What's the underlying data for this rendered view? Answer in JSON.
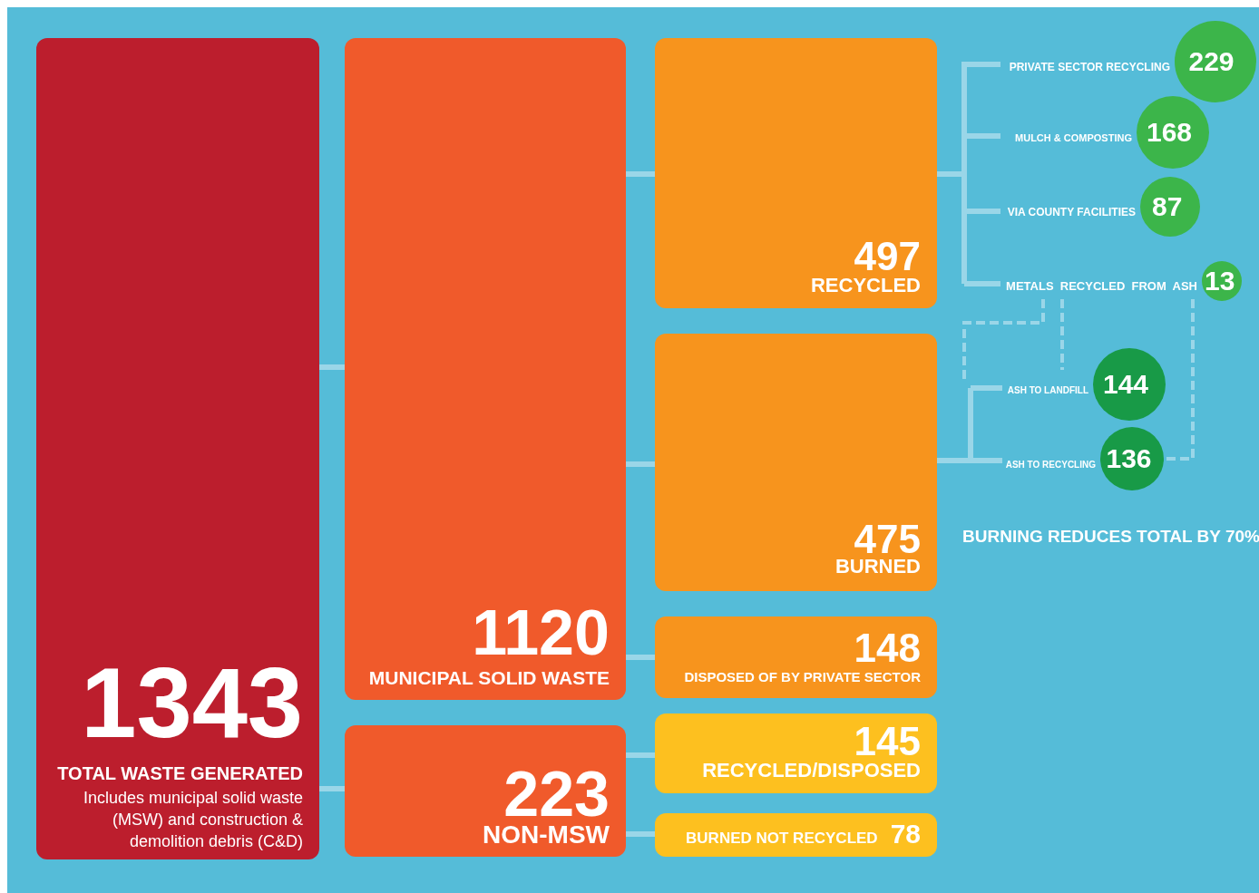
{
  "chart_data": {
    "type": "other",
    "categories": [
      "TOTAL WASTE GENERATED",
      "MUNICIPAL SOLID WASTE",
      "NON-MSW",
      "RECYCLED",
      "BURNED",
      "DISPOSED OF BY PRIVATE SECTOR",
      "RECYCLED/DISPOSED",
      "BURNED NOT RECYCLED",
      "PRIVATE SECTOR RECYCLING",
      "MULCH & COMPOSTING",
      "VIA COUNTY FACILITIES",
      "METALS  RECYCLED  FROM  ASH",
      "ASH TO LANDFILL",
      "ASH TO RECYCLING"
    ],
    "values": [
      1343,
      1120,
      223,
      497,
      475,
      148,
      145,
      78,
      229,
      168,
      87,
      13,
      144,
      136
    ],
    "colors": [
      "#bc1e2d",
      "#f05a2b",
      "#f05a2b",
      "#f7941d",
      "#f7941d",
      "#f7941d",
      "#fdc01f",
      "#fdc01f",
      "#3cb54a",
      "#3cb54a",
      "#3cb54a",
      "#3cb54a",
      "#189a47",
      "#189a47"
    ],
    "data_labels": true,
    "annotations": [
      "Includes municipal solid waste (MSW) and construction & demolition debris (C&D)",
      "BURNING REDUCES TOTAL BY 70%"
    ]
  }
}
